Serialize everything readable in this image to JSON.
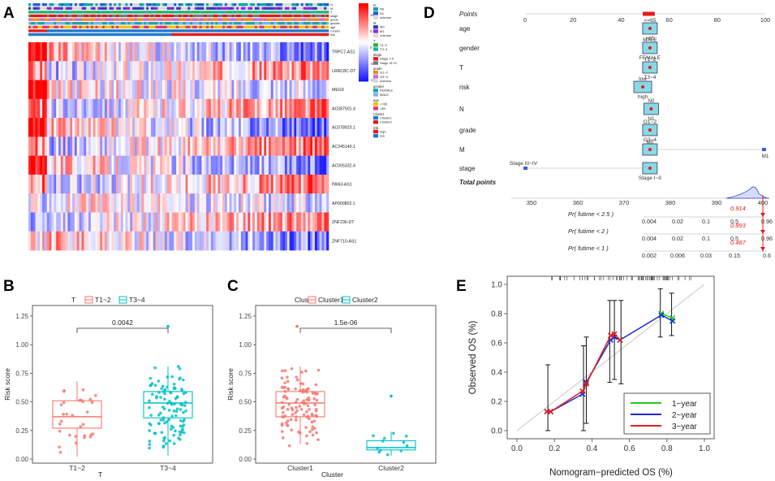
{
  "panels": {
    "A": "A",
    "B": "B",
    "C": "C",
    "D": "D",
    "E": "E"
  },
  "panel_a": {
    "track_labels": [
      "N",
      "M",
      "T",
      "stage",
      "grade",
      "gender",
      "age",
      "Cluster",
      "risk"
    ],
    "genes": [
      "TRPC7-AS1",
      "LRRC8C-DT",
      "MEG9",
      "AC087501.4",
      "AC078923.1",
      "AC245140.1",
      "AC005332.4",
      "PAN3-AS1",
      "AP000802.1",
      "ZNF236-DT",
      "ZNF710-AS1"
    ],
    "scale_ticks": [
      "10",
      "5",
      "0",
      "-5",
      "-10"
    ],
    "legend": [
      {
        "title": "N",
        "items": [
          "N0",
          "N1",
          "unknow"
        ],
        "colors": [
          "#00a8a8",
          "#1e5fd1",
          "#d9d9d9"
        ]
      },
      {
        "title": "M",
        "items": [
          "M0",
          "M1",
          "unknow"
        ],
        "colors": [
          "#3b3bb5",
          "#8f2bd6",
          "#d9d9d9"
        ]
      },
      {
        "title": "T",
        "items": [
          "T1~2",
          "T3~4"
        ],
        "colors": [
          "#2bb34a",
          "#1fb1a8"
        ]
      },
      {
        "title": "stage",
        "items": [
          "Stage I~II",
          "Stage III~IV"
        ],
        "colors": [
          "#e31a1c",
          "#777777"
        ]
      },
      {
        "title": "grade",
        "items": [
          "G1~2",
          "G3~4",
          "unknow"
        ],
        "colors": [
          "#f08a24",
          "#c06fd6",
          "#d9d9d9"
        ]
      },
      {
        "title": "gender",
        "items": [
          "FEMALE",
          "MALE"
        ],
        "colors": [
          "#1fa3a8",
          "#7db3e8"
        ]
      },
      {
        "title": "age",
        "items": [
          "<=65",
          ">65"
        ],
        "colors": [
          "#f0c000",
          "#e2387a"
        ]
      },
      {
        "title": "Cluster",
        "items": [
          "Cluster1",
          "Cluster2"
        ],
        "colors": [
          "#1f78d1",
          "#e31a1c"
        ]
      },
      {
        "title": "risk",
        "items": [
          "high",
          "low"
        ],
        "colors": [
          "#e31a1c",
          "#1f78d1"
        ]
      }
    ]
  },
  "panel_b": {
    "legend_title": "T",
    "legend_items": [
      "T1~2",
      "T3~4"
    ],
    "pvalue": "0.0042",
    "ylabel": "Risk score",
    "xlabel": "T",
    "categories": [
      "T1~2",
      "T3~4"
    ],
    "yticks": [
      "0.00",
      "0.25",
      "0.50",
      "0.75",
      "1.00",
      "1.25"
    ],
    "colors": [
      "#f8766d",
      "#00bfc4"
    ]
  },
  "panel_c": {
    "legend_title": "Cluster",
    "legend_items": [
      "Cluster1",
      "Cluster2"
    ],
    "pvalue": "1.5e-06",
    "ylabel": "Risk score",
    "xlabel": "Cluster",
    "categories": [
      "Cluster1",
      "Cluster2"
    ],
    "yticks": [
      "0.00",
      "0.25",
      "0.50",
      "0.75",
      "1.00",
      "1.25"
    ],
    "colors": [
      "#f8766d",
      "#00bfc4"
    ]
  },
  "panel_d": {
    "points_label": "Points",
    "points_ticks": [
      "0",
      "20",
      "40",
      "60",
      "80",
      "100"
    ],
    "rows": [
      "age",
      "gender",
      "T",
      "risk",
      "N",
      "grade",
      "M",
      "stage"
    ],
    "level_labels": {
      "age": [
        "<=65",
        ">65"
      ],
      "gender": [
        "MALE",
        "FEMALE"
      ],
      "T": [
        "T1~2",
        "T3~4"
      ],
      "risk": [
        "low",
        "high"
      ],
      "N": [
        "N0",
        "N1"
      ],
      "grade": [
        "G1~2",
        "G3~4"
      ],
      "M": [
        "M0",
        "M1"
      ],
      "stage": [
        "Stage III~IV",
        "Stage I~II"
      ]
    },
    "total_label": "Total points",
    "total_ticks": [
      "350",
      "360",
      "370",
      "380",
      "390",
      "400"
    ],
    "pr_rows": [
      {
        "label": "Pr( futime < 2.5 )",
        "value": "0.914",
        "ticks": [
          "0.004",
          "0.02",
          "0.1",
          "0.5",
          "0.96"
        ]
      },
      {
        "label": "Pr( futime < 2 )",
        "value": "0.893",
        "ticks": [
          "0.004",
          "0.02",
          "0.1",
          "0.5",
          "0.96"
        ]
      },
      {
        "label": "Pr( futime < 1 )",
        "value": "0.487",
        "ticks": [
          "0.002",
          "0.006",
          "0.03",
          "0.15",
          "0.6"
        ]
      }
    ]
  },
  "panel_e": {
    "xlabel": "Nomogram−predicted OS (%)",
    "ylabel": "Observed OS (%)",
    "xticks": [
      "0.0",
      "0.2",
      "0.4",
      "0.6",
      "0.8",
      "1.0"
    ],
    "yticks": [
      "0.0",
      "0.2",
      "0.4",
      "0.6",
      "0.8",
      "1.0"
    ],
    "legend": [
      "1−year",
      "2−year",
      "3−year"
    ],
    "colors": [
      "#22cc22",
      "#1a2ecc",
      "#dd1f1f"
    ]
  },
  "chart_data": [
    {
      "id": "B",
      "type": "box",
      "title": "",
      "xlabel": "T",
      "ylabel": "Risk score",
      "ylim": [
        0,
        1.25
      ],
      "categories": [
        "T1~2",
        "T3~4"
      ],
      "series": [
        {
          "name": "T1~2",
          "q1": 0.27,
          "median": 0.37,
          "q3": 0.51,
          "whisker_low": 0.02,
          "whisker_high": 0.68
        },
        {
          "name": "T3~4",
          "q1": 0.36,
          "median": 0.49,
          "q3": 0.59,
          "whisker_low": 0.03,
          "whisker_high": 0.81
        }
      ],
      "annotation": "0.0042"
    },
    {
      "id": "C",
      "type": "box",
      "title": "",
      "xlabel": "Cluster",
      "ylabel": "Risk score",
      "ylim": [
        0,
        1.25
      ],
      "categories": [
        "Cluster1",
        "Cluster2"
      ],
      "series": [
        {
          "name": "Cluster1",
          "q1": 0.37,
          "median": 0.49,
          "q3": 0.59,
          "whisker_low": 0.13,
          "whisker_high": 0.81
        },
        {
          "name": "Cluster2",
          "q1": 0.08,
          "median": 0.1,
          "q3": 0.16,
          "whisker_low": 0.03,
          "whisker_high": 0.24
        }
      ],
      "annotation": "1.5e-06"
    },
    {
      "id": "E",
      "type": "line",
      "title": "",
      "xlabel": "Nomogram−predicted OS (%)",
      "ylabel": "Observed OS (%)",
      "xlim": [
        0,
        1
      ],
      "ylim": [
        0,
        1
      ],
      "series": [
        {
          "name": "1−year",
          "x": [
            0.77,
            0.83
          ],
          "y": [
            0.8,
            0.77
          ]
        },
        {
          "name": "2−year",
          "x": [
            0.16,
            0.18,
            0.35,
            0.37,
            0.5,
            0.52,
            0.55,
            0.77,
            0.83
          ],
          "y": [
            0.13,
            0.13,
            0.25,
            0.33,
            0.62,
            0.64,
            0.62,
            0.79,
            0.75
          ]
        },
        {
          "name": "3−year",
          "x": [
            0.16,
            0.18,
            0.35,
            0.37,
            0.5,
            0.52,
            0.55
          ],
          "y": [
            0.13,
            0.13,
            0.27,
            0.32,
            0.65,
            0.66,
            0.62
          ]
        }
      ],
      "error_bars": [
        {
          "x": 0.165,
          "low": 0.0,
          "high": 0.45
        },
        {
          "x": 0.355,
          "low": 0.0,
          "high": 0.58
        },
        {
          "x": 0.37,
          "low": 0.05,
          "high": 0.64
        },
        {
          "x": 0.495,
          "low": 0.33,
          "high": 0.89
        },
        {
          "x": 0.52,
          "low": 0.35,
          "high": 0.89
        },
        {
          "x": 0.555,
          "low": 0.32,
          "high": 0.89
        },
        {
          "x": 0.765,
          "low": 0.64,
          "high": 0.97
        },
        {
          "x": 0.825,
          "low": 0.65,
          "high": 0.94
        }
      ]
    }
  ]
}
